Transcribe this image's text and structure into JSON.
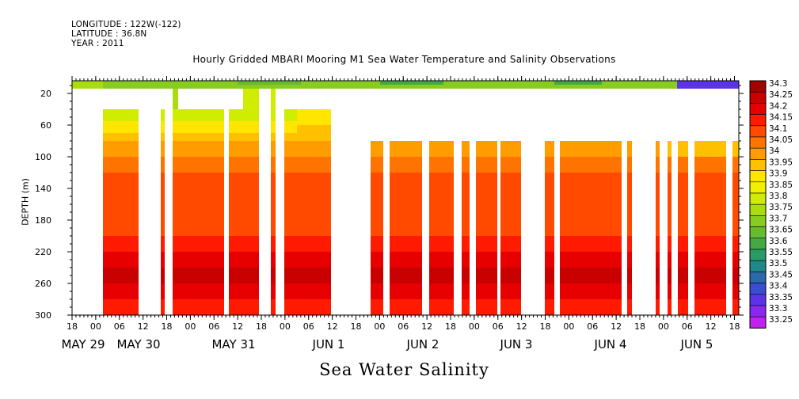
{
  "header": {
    "longitude": "LONGITUDE : 122W(-122)",
    "latitude": "LATITUDE : 36.8N",
    "year": "YEAR : 2011"
  },
  "chart_data": {
    "type": "heatmap",
    "title": "Hourly Gridded MBARI Mooring M1 Sea Water Temperature and Salinity Observations",
    "variable_title": "Sea Water Salinity",
    "ylabel": "DEPTH (m)",
    "y_ticks": [
      20,
      60,
      100,
      140,
      180,
      220,
      260,
      300
    ],
    "ylim": [
      300,
      4
    ],
    "x_hour_ticks": [
      "18",
      "00",
      "06",
      "12",
      "18",
      "00",
      "06",
      "12",
      "18",
      "00",
      "06",
      "12",
      "18",
      "00",
      "06",
      "12",
      "18",
      "00",
      "06",
      "12",
      "18",
      "00",
      "06",
      "12",
      "18",
      "00",
      "06",
      "12",
      "18"
    ],
    "x_day_labels": [
      "MAY 29",
      "MAY 30",
      "MAY 31",
      "JUN  1",
      "JUN  2",
      "JUN  3",
      "JUN  4",
      "JUN  5"
    ],
    "colorbar": {
      "levels": [
        "34.3",
        "34.25",
        "34.2",
        "34.15",
        "34.1",
        "34.05",
        "34",
        "33.95",
        "33.9",
        "33.85",
        "33.8",
        "33.75",
        "33.7",
        "33.65",
        "33.6",
        "33.55",
        "33.5",
        "33.45",
        "33.4",
        "33.35",
        "33.3",
        "33.25"
      ],
      "colors": [
        "#a30000",
        "#c80000",
        "#e60000",
        "#ff1a00",
        "#ff4a00",
        "#ff7400",
        "#ff9c00",
        "#ffc000",
        "#ffe600",
        "#f0f000",
        "#d0ec00",
        "#aadd10",
        "#88cc20",
        "#66bb33",
        "#44a845",
        "#2a9a66",
        "#208888",
        "#2a6aa8",
        "#3a4ed0",
        "#5c34e6",
        "#8a28ee",
        "#c020f0"
      ]
    },
    "surface_band": {
      "depth_range": [
        4,
        14
      ],
      "description_values": "salinity ~33.65–33.75 across period, decreasing to ~33.3 at end"
    },
    "profile": [
      {
        "depth": 40,
        "salinity": 33.8
      },
      {
        "depth": 60,
        "salinity": 33.9
      },
      {
        "depth": 80,
        "salinity": 33.98
      },
      {
        "depth": 100,
        "salinity": 34.02
      },
      {
        "depth": 120,
        "salinity": 34.06
      },
      {
        "depth": 140,
        "salinity": 34.12
      },
      {
        "depth": 160,
        "salinity": 34.12
      },
      {
        "depth": 180,
        "salinity": 34.12
      },
      {
        "depth": 200,
        "salinity": 34.13
      },
      {
        "depth": 220,
        "salinity": 34.18
      },
      {
        "depth": 240,
        "salinity": 34.22
      },
      {
        "depth": 260,
        "salinity": 34.25
      },
      {
        "depth": 280,
        "salinity": 34.2
      },
      {
        "depth": 300,
        "salinity": 34.18
      }
    ],
    "grid": false
  }
}
